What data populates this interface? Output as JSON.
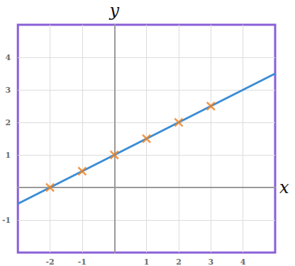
{
  "chart_data": {
    "type": "line",
    "x_label": "x",
    "y_label": "y",
    "xlim": [
      -3,
      5
    ],
    "ylim": [
      -2,
      5
    ],
    "xticks": [
      -2,
      -1,
      1,
      2,
      3,
      4
    ],
    "yticks": [
      -1,
      1,
      2,
      3,
      4
    ],
    "grid": true,
    "series": [
      {
        "type": "line",
        "x": [
          -3,
          5
        ],
        "values": [
          -0.5,
          3.5
        ],
        "color": "#3a8dd6",
        "marker": "none"
      },
      {
        "type": "scatter",
        "x": [
          -2,
          -1,
          0,
          1,
          2,
          3
        ],
        "values": [
          0,
          0.5,
          1,
          1.5,
          2,
          2.5
        ],
        "color": "#f07f1c",
        "marker": "x"
      }
    ]
  }
}
